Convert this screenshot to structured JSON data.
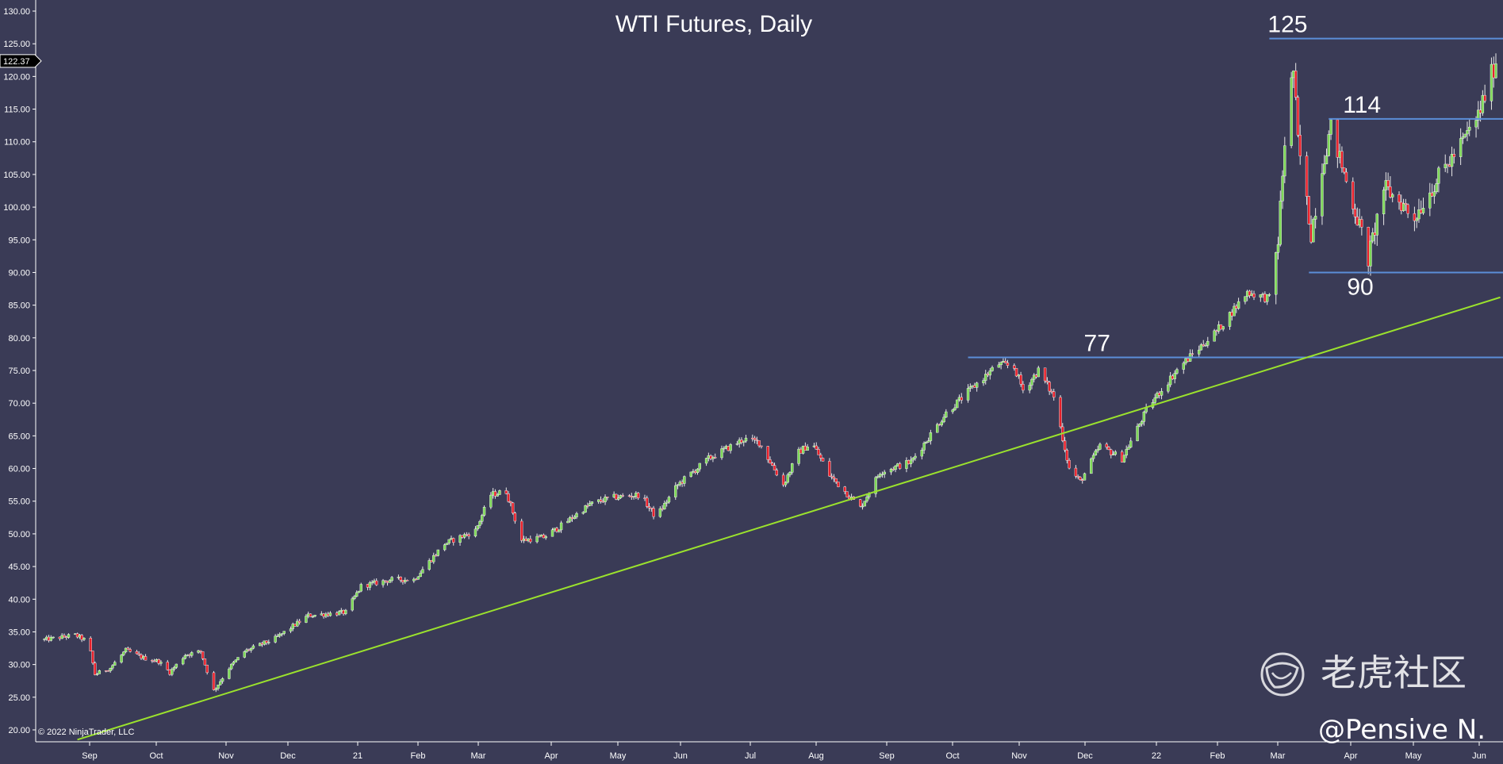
{
  "chart_data": {
    "type": "candlestick",
    "title": "WTI Futures, Daily",
    "ylim": [
      19,
      131
    ],
    "y_ticks": [
      "20.00",
      "25.00",
      "30.00",
      "35.00",
      "40.00",
      "45.00",
      "50.00",
      "55.00",
      "60.00",
      "65.00",
      "70.00",
      "75.00",
      "80.00",
      "85.00",
      "90.00",
      "95.00",
      "100.00",
      "105.00",
      "110.00",
      "115.00",
      "120.00",
      "125.00",
      "130.00"
    ],
    "x_ticks": [
      "Sep",
      "Oct",
      "Nov",
      "Dec",
      "21",
      "Feb",
      "Mar",
      "Apr",
      "May",
      "Jun",
      "Jul",
      "Aug",
      "Sep",
      "Oct",
      "Nov",
      "Dec",
      "22",
      "Feb",
      "Mar",
      "Apr",
      "May",
      "Jun"
    ],
    "last_price": "122.37",
    "up_color": "#7ed957",
    "down_color": "#e8202a",
    "price_path": [
      [
        "2020-08-17",
        33.8
      ],
      [
        "2020-08-31",
        34.5
      ],
      [
        "2020-09-06",
        33.5
      ],
      [
        "2020-09-09",
        28.5
      ],
      [
        "2020-09-16",
        29.5
      ],
      [
        "2020-09-23",
        32.2
      ],
      [
        "2020-10-01",
        31.0
      ],
      [
        "2020-10-08",
        30.5
      ],
      [
        "2020-10-13",
        28.8
      ],
      [
        "2020-10-20",
        31.5
      ],
      [
        "2020-10-27",
        32.0
      ],
      [
        "2020-11-02",
        26.0
      ],
      [
        "2020-11-09",
        29.5
      ],
      [
        "2020-11-16",
        32.0
      ],
      [
        "2020-11-30",
        34.0
      ],
      [
        "2020-12-15",
        37.5
      ],
      [
        "2021-01-01",
        38.0
      ],
      [
        "2021-01-08",
        42.0
      ],
      [
        "2021-01-22",
        43.0
      ],
      [
        "2021-02-01",
        43.0
      ],
      [
        "2021-02-15",
        48.5
      ],
      [
        "2021-03-01",
        50.5
      ],
      [
        "2021-03-08",
        56.0
      ],
      [
        "2021-03-15",
        56.5
      ],
      [
        "2021-03-22",
        49.0
      ],
      [
        "2021-04-01",
        49.5
      ],
      [
        "2021-04-08",
        51.0
      ],
      [
        "2021-04-22",
        54.5
      ],
      [
        "2021-05-01",
        55.5
      ],
      [
        "2021-05-15",
        56.0
      ],
      [
        "2021-05-22",
        52.5
      ],
      [
        "2021-06-01",
        57.5
      ],
      [
        "2021-06-15",
        61.5
      ],
      [
        "2021-07-01",
        64.5
      ],
      [
        "2021-07-08",
        64.0
      ],
      [
        "2021-07-19",
        57.5
      ],
      [
        "2021-07-26",
        62.5
      ],
      [
        "2021-08-01",
        64.0
      ],
      [
        "2021-08-09",
        59.0
      ],
      [
        "2021-08-16",
        56.5
      ],
      [
        "2021-08-23",
        54.0
      ],
      [
        "2021-09-01",
        59.5
      ],
      [
        "2021-09-15",
        61.0
      ],
      [
        "2021-10-01",
        68.5
      ],
      [
        "2021-10-15",
        73.0
      ],
      [
        "2021-10-25",
        76.0
      ],
      [
        "2021-11-01",
        75.5
      ],
      [
        "2021-11-05",
        72.0
      ],
      [
        "2021-11-12",
        75.0
      ],
      [
        "2021-11-19",
        71.0
      ],
      [
        "2021-11-26",
        60.0
      ],
      [
        "2021-12-01",
        58.0
      ],
      [
        "2021-12-10",
        63.5
      ],
      [
        "2021-12-20",
        61.5
      ],
      [
        "2022-01-01",
        69.5
      ],
      [
        "2022-01-15",
        75.5
      ],
      [
        "2022-02-01",
        81.0
      ],
      [
        "2022-02-15",
        87.0
      ],
      [
        "2022-02-25",
        86.0
      ],
      [
        "2022-03-01",
        95.0
      ],
      [
        "2022-03-05",
        115.0
      ],
      [
        "2022-03-08",
        121.0
      ],
      [
        "2022-03-10",
        110.0
      ],
      [
        "2022-03-16",
        96.0
      ],
      [
        "2022-03-22",
        108.0
      ],
      [
        "2022-03-25",
        112.0
      ],
      [
        "2022-04-01",
        104.0
      ],
      [
        "2022-04-08",
        96.0
      ],
      [
        "2022-04-11",
        92.0
      ],
      [
        "2022-04-18",
        103.0
      ],
      [
        "2022-04-28",
        100.0
      ],
      [
        "2022-05-01",
        98.0
      ],
      [
        "2022-05-10",
        103.0
      ],
      [
        "2022-05-20",
        108.0
      ],
      [
        "2022-05-24",
        110.0
      ],
      [
        "2022-05-31",
        114.0
      ],
      [
        "2022-06-08",
        122.37
      ]
    ],
    "horizontal_lines": [
      {
        "label": "125",
        "value": 125.8,
        "from": "2022-02-25",
        "to": "2022-06-14"
      },
      {
        "label": "114",
        "value": 113.5,
        "from": "2022-03-24",
        "to": "2022-06-14"
      },
      {
        "label": "90",
        "value": 90.0,
        "from": "2022-03-15",
        "to": "2022-06-14"
      },
      {
        "label": "77",
        "value": 77.0,
        "from": "2021-10-11",
        "to": "2022-06-14"
      }
    ],
    "trendline": {
      "from": [
        "2020-09-01",
        18.5
      ],
      "to": [
        "2022-06-10",
        86.2
      ],
      "color": "#9be22d"
    },
    "line_color": "#5b8ed8"
  },
  "copyright": "© 2022 NinjaTrader, LLC",
  "watermark": {
    "brand": "老虎社区",
    "handle": "@Pensive N."
  }
}
